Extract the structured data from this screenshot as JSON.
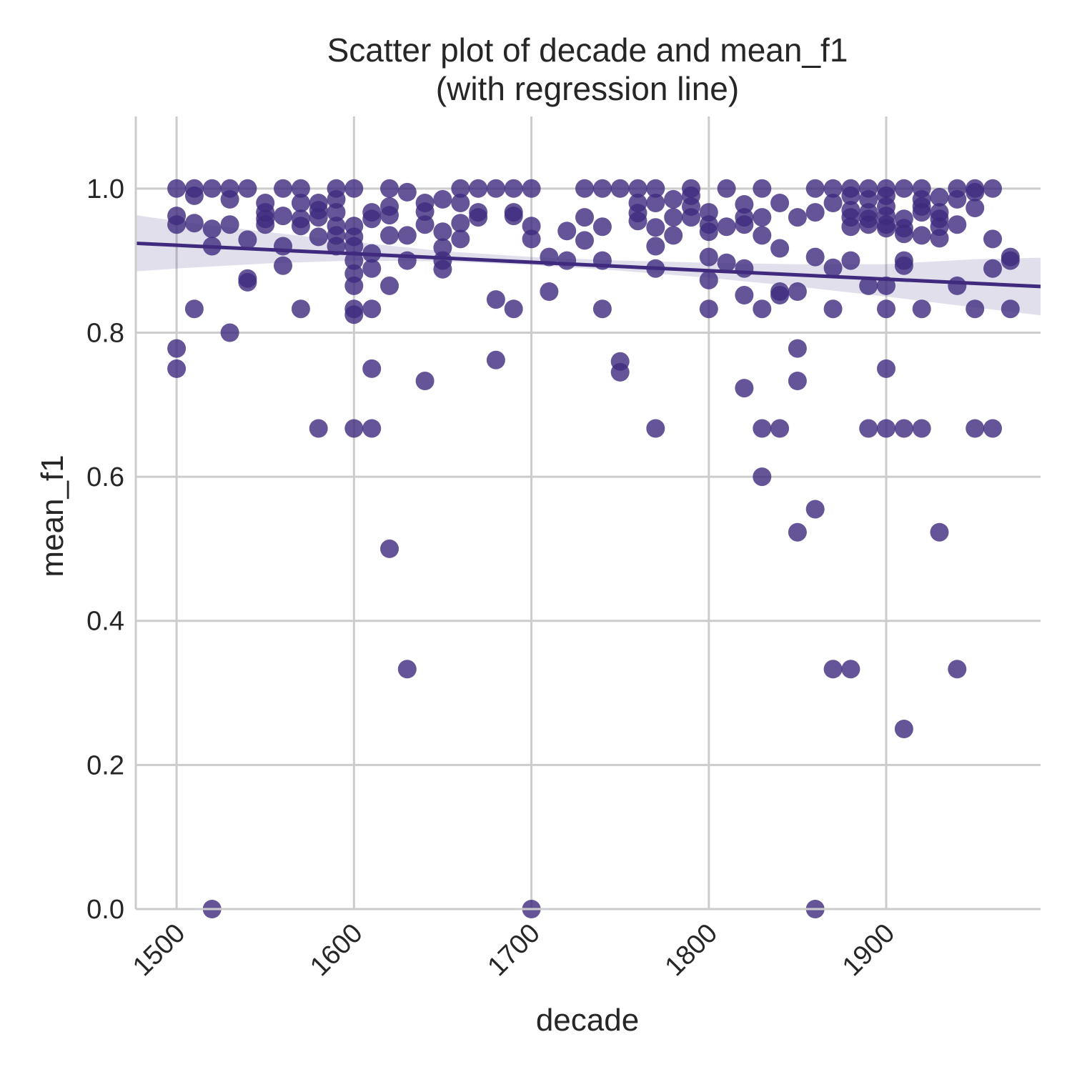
{
  "chart_data": {
    "type": "scatter",
    "title": "Scatter plot of decade and mean_f1",
    "subtitle": "(with regression line)",
    "xlabel": "decade",
    "ylabel": "mean_f1",
    "xlim": [
      1477,
      1987
    ],
    "ylim": [
      0,
      1.1
    ],
    "x_ticks": [
      "1500",
      "1600",
      "1700",
      "1800",
      "1900"
    ],
    "y_ticks": [
      "0.0",
      "0.2",
      "0.4",
      "0.6",
      "0.8",
      "1.0"
    ],
    "grid": true,
    "point_color": "#3f2a7e",
    "regression": {
      "x": [
        1477,
        1987
      ],
      "y": [
        0.924,
        0.864
      ]
    },
    "confidence_band": {
      "x": [
        1477,
        1500,
        1550,
        1600,
        1650,
        1700,
        1750,
        1800,
        1850,
        1900,
        1950,
        1987
      ],
      "lower": [
        0.885,
        0.889,
        0.896,
        0.9,
        0.899,
        0.894,
        0.886,
        0.876,
        0.864,
        0.85,
        0.835,
        0.824
      ],
      "upper": [
        0.963,
        0.955,
        0.94,
        0.926,
        0.913,
        0.905,
        0.9,
        0.897,
        0.895,
        0.895,
        0.902,
        0.904
      ]
    },
    "points": [
      {
        "x": 1500,
        "y": 1.0
      },
      {
        "x": 1500,
        "y": 0.962
      },
      {
        "x": 1500,
        "y": 0.95
      },
      {
        "x": 1500,
        "y": 0.778
      },
      {
        "x": 1500,
        "y": 0.75
      },
      {
        "x": 1510,
        "y": 1.0
      },
      {
        "x": 1510,
        "y": 0.99
      },
      {
        "x": 1510,
        "y": 0.952
      },
      {
        "x": 1510,
        "y": 0.833
      },
      {
        "x": 1520,
        "y": 1.0
      },
      {
        "x": 1520,
        "y": 0.944
      },
      {
        "x": 1520,
        "y": 0.92
      },
      {
        "x": 1520,
        "y": 0.0
      },
      {
        "x": 1530,
        "y": 1.0
      },
      {
        "x": 1530,
        "y": 0.985
      },
      {
        "x": 1530,
        "y": 0.95
      },
      {
        "x": 1530,
        "y": 0.8
      },
      {
        "x": 1540,
        "y": 1.0
      },
      {
        "x": 1540,
        "y": 0.929
      },
      {
        "x": 1540,
        "y": 0.875
      },
      {
        "x": 1540,
        "y": 0.87
      },
      {
        "x": 1550,
        "y": 0.98
      },
      {
        "x": 1550,
        "y": 0.967
      },
      {
        "x": 1550,
        "y": 0.958
      },
      {
        "x": 1550,
        "y": 0.95
      },
      {
        "x": 1560,
        "y": 1.0
      },
      {
        "x": 1560,
        "y": 0.962
      },
      {
        "x": 1560,
        "y": 0.92
      },
      {
        "x": 1560,
        "y": 0.893
      },
      {
        "x": 1570,
        "y": 1.0
      },
      {
        "x": 1570,
        "y": 0.98
      },
      {
        "x": 1570,
        "y": 0.958
      },
      {
        "x": 1570,
        "y": 0.948
      },
      {
        "x": 1570,
        "y": 0.833
      },
      {
        "x": 1580,
        "y": 0.98
      },
      {
        "x": 1580,
        "y": 0.97
      },
      {
        "x": 1580,
        "y": 0.96
      },
      {
        "x": 1580,
        "y": 0.933
      },
      {
        "x": 1580,
        "y": 0.667
      },
      {
        "x": 1590,
        "y": 1.0
      },
      {
        "x": 1590,
        "y": 0.985
      },
      {
        "x": 1590,
        "y": 0.967
      },
      {
        "x": 1590,
        "y": 0.948
      },
      {
        "x": 1590,
        "y": 0.935
      },
      {
        "x": 1590,
        "y": 0.92
      },
      {
        "x": 1600,
        "y": 1.0
      },
      {
        "x": 1600,
        "y": 0.948
      },
      {
        "x": 1600,
        "y": 0.933
      },
      {
        "x": 1600,
        "y": 0.92
      },
      {
        "x": 1600,
        "y": 0.9
      },
      {
        "x": 1600,
        "y": 0.882
      },
      {
        "x": 1600,
        "y": 0.865
      },
      {
        "x": 1600,
        "y": 0.833
      },
      {
        "x": 1600,
        "y": 0.825
      },
      {
        "x": 1600,
        "y": 0.667
      },
      {
        "x": 1610,
        "y": 0.967
      },
      {
        "x": 1610,
        "y": 0.958
      },
      {
        "x": 1610,
        "y": 0.91
      },
      {
        "x": 1610,
        "y": 0.889
      },
      {
        "x": 1610,
        "y": 0.833
      },
      {
        "x": 1610,
        "y": 0.75
      },
      {
        "x": 1610,
        "y": 0.667
      },
      {
        "x": 1620,
        "y": 1.0
      },
      {
        "x": 1620,
        "y": 0.975
      },
      {
        "x": 1620,
        "y": 0.963
      },
      {
        "x": 1620,
        "y": 0.935
      },
      {
        "x": 1620,
        "y": 0.865
      },
      {
        "x": 1620,
        "y": 0.5
      },
      {
        "x": 1630,
        "y": 0.995
      },
      {
        "x": 1630,
        "y": 0.935
      },
      {
        "x": 1630,
        "y": 0.9
      },
      {
        "x": 1630,
        "y": 0.333
      },
      {
        "x": 1640,
        "y": 0.98
      },
      {
        "x": 1640,
        "y": 0.968
      },
      {
        "x": 1640,
        "y": 0.95
      },
      {
        "x": 1640,
        "y": 0.733
      },
      {
        "x": 1650,
        "y": 0.985
      },
      {
        "x": 1650,
        "y": 0.94
      },
      {
        "x": 1650,
        "y": 0.918
      },
      {
        "x": 1650,
        "y": 0.9
      },
      {
        "x": 1650,
        "y": 0.888
      },
      {
        "x": 1660,
        "y": 1.0
      },
      {
        "x": 1660,
        "y": 0.98
      },
      {
        "x": 1660,
        "y": 0.952
      },
      {
        "x": 1660,
        "y": 0.93
      },
      {
        "x": 1670,
        "y": 1.0
      },
      {
        "x": 1670,
        "y": 0.967
      },
      {
        "x": 1670,
        "y": 0.96
      },
      {
        "x": 1680,
        "y": 1.0
      },
      {
        "x": 1680,
        "y": 0.846
      },
      {
        "x": 1680,
        "y": 0.762
      },
      {
        "x": 1690,
        "y": 1.0
      },
      {
        "x": 1690,
        "y": 0.967
      },
      {
        "x": 1690,
        "y": 0.962
      },
      {
        "x": 1690,
        "y": 0.833
      },
      {
        "x": 1700,
        "y": 1.0
      },
      {
        "x": 1700,
        "y": 0.948
      },
      {
        "x": 1700,
        "y": 0.93
      },
      {
        "x": 1700,
        "y": 0.0
      },
      {
        "x": 1710,
        "y": 0.905
      },
      {
        "x": 1710,
        "y": 0.857
      },
      {
        "x": 1720,
        "y": 0.941
      },
      {
        "x": 1720,
        "y": 0.9
      },
      {
        "x": 1730,
        "y": 1.0
      },
      {
        "x": 1730,
        "y": 0.96
      },
      {
        "x": 1730,
        "y": 0.928
      },
      {
        "x": 1740,
        "y": 1.0
      },
      {
        "x": 1740,
        "y": 0.947
      },
      {
        "x": 1740,
        "y": 0.9
      },
      {
        "x": 1740,
        "y": 0.833
      },
      {
        "x": 1750,
        "y": 1.0
      },
      {
        "x": 1750,
        "y": 0.76
      },
      {
        "x": 1750,
        "y": 0.745
      },
      {
        "x": 1760,
        "y": 1.0
      },
      {
        "x": 1760,
        "y": 0.98
      },
      {
        "x": 1760,
        "y": 0.966
      },
      {
        "x": 1760,
        "y": 0.955
      },
      {
        "x": 1770,
        "y": 1.0
      },
      {
        "x": 1770,
        "y": 0.98
      },
      {
        "x": 1770,
        "y": 0.946
      },
      {
        "x": 1770,
        "y": 0.92
      },
      {
        "x": 1770,
        "y": 0.889
      },
      {
        "x": 1770,
        "y": 0.667
      },
      {
        "x": 1780,
        "y": 0.985
      },
      {
        "x": 1780,
        "y": 0.96
      },
      {
        "x": 1780,
        "y": 0.935
      },
      {
        "x": 1790,
        "y": 1.0
      },
      {
        "x": 1790,
        "y": 0.99
      },
      {
        "x": 1790,
        "y": 0.975
      },
      {
        "x": 1790,
        "y": 0.96
      },
      {
        "x": 1800,
        "y": 0.967
      },
      {
        "x": 1800,
        "y": 0.95
      },
      {
        "x": 1800,
        "y": 0.94
      },
      {
        "x": 1800,
        "y": 0.905
      },
      {
        "x": 1800,
        "y": 0.873
      },
      {
        "x": 1800,
        "y": 0.833
      },
      {
        "x": 1810,
        "y": 1.0
      },
      {
        "x": 1810,
        "y": 0.947
      },
      {
        "x": 1810,
        "y": 0.897
      },
      {
        "x": 1820,
        "y": 0.978
      },
      {
        "x": 1820,
        "y": 0.96
      },
      {
        "x": 1820,
        "y": 0.95
      },
      {
        "x": 1820,
        "y": 0.889
      },
      {
        "x": 1820,
        "y": 0.852
      },
      {
        "x": 1820,
        "y": 0.723
      },
      {
        "x": 1830,
        "y": 1.0
      },
      {
        "x": 1830,
        "y": 0.96
      },
      {
        "x": 1830,
        "y": 0.935
      },
      {
        "x": 1830,
        "y": 0.833
      },
      {
        "x": 1830,
        "y": 0.667
      },
      {
        "x": 1830,
        "y": 0.6
      },
      {
        "x": 1840,
        "y": 0.98
      },
      {
        "x": 1840,
        "y": 0.917
      },
      {
        "x": 1840,
        "y": 0.857
      },
      {
        "x": 1840,
        "y": 0.852
      },
      {
        "x": 1840,
        "y": 0.667
      },
      {
        "x": 1850,
        "y": 0.96
      },
      {
        "x": 1850,
        "y": 0.857
      },
      {
        "x": 1850,
        "y": 0.778
      },
      {
        "x": 1850,
        "y": 0.733
      },
      {
        "x": 1850,
        "y": 0.523
      },
      {
        "x": 1860,
        "y": 1.0
      },
      {
        "x": 1860,
        "y": 0.967
      },
      {
        "x": 1860,
        "y": 0.905
      },
      {
        "x": 1860,
        "y": 0.555
      },
      {
        "x": 1860,
        "y": 0.0
      },
      {
        "x": 1870,
        "y": 1.0
      },
      {
        "x": 1870,
        "y": 0.98
      },
      {
        "x": 1870,
        "y": 0.89
      },
      {
        "x": 1870,
        "y": 0.833
      },
      {
        "x": 1870,
        "y": 0.333
      },
      {
        "x": 1880,
        "y": 1.0
      },
      {
        "x": 1880,
        "y": 0.99
      },
      {
        "x": 1880,
        "y": 0.97
      },
      {
        "x": 1880,
        "y": 0.96
      },
      {
        "x": 1880,
        "y": 0.947
      },
      {
        "x": 1880,
        "y": 0.9
      },
      {
        "x": 1880,
        "y": 0.333
      },
      {
        "x": 1890,
        "y": 1.0
      },
      {
        "x": 1890,
        "y": 0.985
      },
      {
        "x": 1890,
        "y": 0.967
      },
      {
        "x": 1890,
        "y": 0.958
      },
      {
        "x": 1890,
        "y": 0.95
      },
      {
        "x": 1890,
        "y": 0.865
      },
      {
        "x": 1890,
        "y": 0.667
      },
      {
        "x": 1900,
        "y": 1.0
      },
      {
        "x": 1900,
        "y": 0.99
      },
      {
        "x": 1900,
        "y": 0.975
      },
      {
        "x": 1900,
        "y": 0.962
      },
      {
        "x": 1900,
        "y": 0.95
      },
      {
        "x": 1900,
        "y": 0.945
      },
      {
        "x": 1900,
        "y": 0.865
      },
      {
        "x": 1900,
        "y": 0.833
      },
      {
        "x": 1900,
        "y": 0.75
      },
      {
        "x": 1900,
        "y": 0.667
      },
      {
        "x": 1910,
        "y": 1.0
      },
      {
        "x": 1910,
        "y": 0.958
      },
      {
        "x": 1910,
        "y": 0.945
      },
      {
        "x": 1910,
        "y": 0.937
      },
      {
        "x": 1910,
        "y": 0.9
      },
      {
        "x": 1910,
        "y": 0.893
      },
      {
        "x": 1910,
        "y": 0.667
      },
      {
        "x": 1910,
        "y": 0.25
      },
      {
        "x": 1920,
        "y": 1.0
      },
      {
        "x": 1920,
        "y": 0.985
      },
      {
        "x": 1920,
        "y": 0.975
      },
      {
        "x": 1920,
        "y": 0.967
      },
      {
        "x": 1920,
        "y": 0.935
      },
      {
        "x": 1920,
        "y": 0.833
      },
      {
        "x": 1920,
        "y": 0.667
      },
      {
        "x": 1930,
        "y": 0.988
      },
      {
        "x": 1930,
        "y": 0.967
      },
      {
        "x": 1930,
        "y": 0.958
      },
      {
        "x": 1930,
        "y": 0.947
      },
      {
        "x": 1930,
        "y": 0.931
      },
      {
        "x": 1930,
        "y": 0.523
      },
      {
        "x": 1940,
        "y": 1.0
      },
      {
        "x": 1940,
        "y": 0.985
      },
      {
        "x": 1940,
        "y": 0.95
      },
      {
        "x": 1940,
        "y": 0.865
      },
      {
        "x": 1940,
        "y": 0.333
      },
      {
        "x": 1950,
        "y": 1.0
      },
      {
        "x": 1950,
        "y": 0.995
      },
      {
        "x": 1950,
        "y": 0.973
      },
      {
        "x": 1950,
        "y": 0.833
      },
      {
        "x": 1950,
        "y": 0.667
      },
      {
        "x": 1960,
        "y": 1.0
      },
      {
        "x": 1960,
        "y": 0.93
      },
      {
        "x": 1960,
        "y": 0.889
      },
      {
        "x": 1960,
        "y": 0.667
      },
      {
        "x": 1970,
        "y": 0.905
      },
      {
        "x": 1970,
        "y": 0.9
      },
      {
        "x": 1970,
        "y": 0.833
      }
    ]
  }
}
